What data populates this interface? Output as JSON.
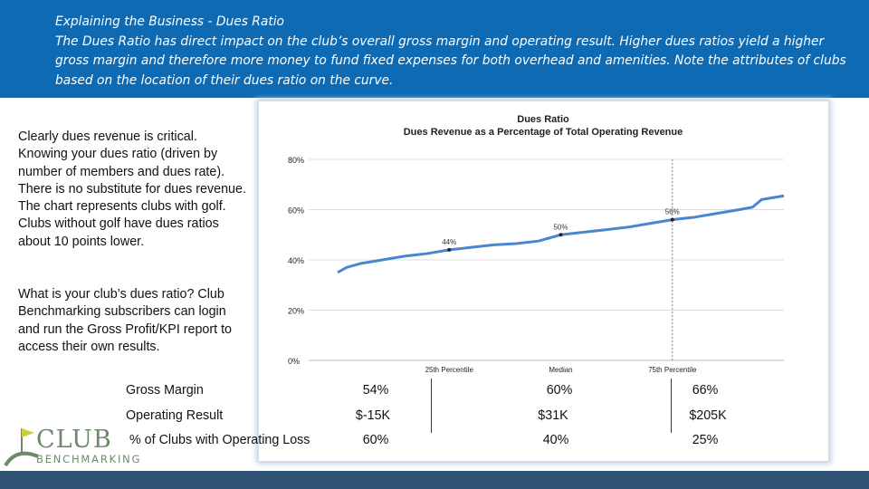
{
  "header": {
    "title": "Explaining the Business - Dues Ratio",
    "body": "The Dues Ratio has direct impact on the club’s overall gross margin and operating result. Higher dues ratios yield a higher gross margin and therefore more money to fund fixed expenses for both overhead and amenities. Note the attributes of clubs based on the location of their dues ratio on the curve."
  },
  "left": {
    "p1": "Clearly dues revenue is critical. Knowing your dues ratio (driven by number of members and dues rate). There is no substitute for dues revenue. The chart represents clubs with golf. Clubs without golf have dues ratios about 10 points lower.",
    "p2": "What is your club’s dues ratio? Club Benchmarking subscribers can login and run the Gross Profit/KPI report to access their own results."
  },
  "chart_data": {
    "type": "line",
    "title": "Dues Ratio",
    "subtitle": "Dues Revenue as a Percentage of Total Operating Revenue",
    "ylim": [
      0,
      80
    ],
    "y_ticks": [
      "0%",
      "20%",
      "40%",
      "60%",
      "80%"
    ],
    "x_ticks": [
      "25th Percentile",
      "Median",
      "75th Percentile"
    ],
    "x": [
      0,
      2,
      5,
      10,
      15,
      20,
      25,
      30,
      35,
      40,
      45,
      50,
      55,
      60,
      65,
      70,
      75,
      80,
      85,
      90,
      93,
      95,
      100
    ],
    "series": [
      {
        "values": [
          35,
          37,
          38.5,
          40,
          41.5,
          42.5,
          44,
          45,
          46,
          46.5,
          47.5,
          50,
          51,
          52,
          53,
          54.5,
          56,
          57,
          58.5,
          60,
          61,
          64,
          65.5
        ]
      }
    ],
    "annotations": [
      {
        "x": 25,
        "y": 44,
        "label": "44%"
      },
      {
        "x": 50,
        "y": 50,
        "label": "50%"
      },
      {
        "x": 75,
        "y": 56,
        "label": "56%"
      }
    ],
    "grid": true,
    "line_color": "#4a86d0"
  },
  "table": {
    "rows": [
      {
        "label": "Gross Margin",
        "values": [
          "54%",
          "60%",
          "66%"
        ]
      },
      {
        "label": "Operating Result",
        "values": [
          "$-15K",
          "$31K",
          "$205K"
        ]
      },
      {
        "label": "% of Clubs with Operating Loss",
        "values": [
          "60%",
          "40%",
          "25%"
        ]
      }
    ]
  },
  "logo": {
    "club": "CLUB",
    "bench": "BENCHMARKING"
  },
  "colors": {
    "banner": "#0e6ab3",
    "footer": "#2f5473",
    "line": "#4a86d0",
    "logo": "#6c8a6b"
  }
}
